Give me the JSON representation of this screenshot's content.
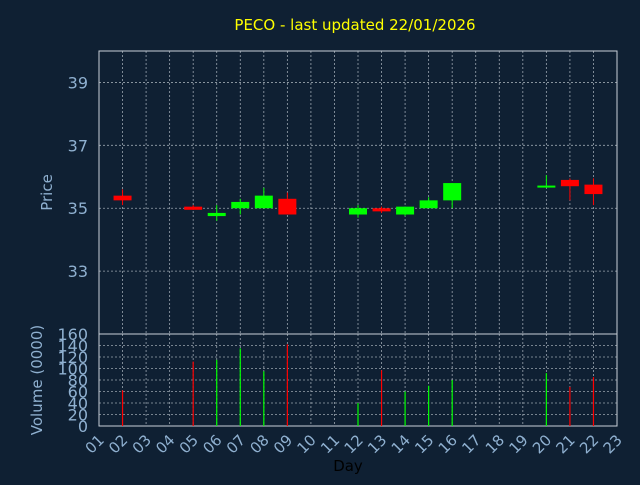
{
  "title": "PECO - last updated 22/01/2026",
  "colors": {
    "background": "#0f2033",
    "title": "#ffff00",
    "axis_text": "#8fb0d0",
    "xlabel": "#000000",
    "grid": "#c8d0d8",
    "frame": "#c8d0d8",
    "up": "#00ff00",
    "down": "#ff0000"
  },
  "chart_data": [
    {
      "type": "candlestick",
      "title": "PECO - last updated 22/01/2026",
      "ylabel": "Price",
      "xlabel": "",
      "ylim": [
        31.0,
        40.0
      ],
      "yticks": [
        33,
        35,
        37,
        39
      ],
      "grid": true,
      "candles": [
        {
          "day": "02",
          "open": 35.4,
          "high": 35.6,
          "low": 35.1,
          "close": 35.25
        },
        {
          "day": "05",
          "open": 35.05,
          "high": 35.1,
          "low": 34.95,
          "close": 34.95
        },
        {
          "day": "06",
          "open": 34.75,
          "high": 35.1,
          "low": 34.6,
          "close": 34.85
        },
        {
          "day": "07",
          "open": 35.0,
          "high": 35.3,
          "low": 34.8,
          "close": 35.2
        },
        {
          "day": "08",
          "open": 35.0,
          "high": 35.65,
          "low": 35.0,
          "close": 35.4
        },
        {
          "day": "09",
          "open": 35.3,
          "high": 35.5,
          "low": 34.8,
          "close": 34.8
        },
        {
          "day": "12",
          "open": 34.8,
          "high": 35.1,
          "low": 34.7,
          "close": 35.0
        },
        {
          "day": "13",
          "open": 35.0,
          "high": 35.05,
          "low": 34.85,
          "close": 34.9
        },
        {
          "day": "14",
          "open": 34.8,
          "high": 35.05,
          "low": 34.75,
          "close": 35.05
        },
        {
          "day": "15",
          "open": 35.0,
          "high": 35.35,
          "low": 35.0,
          "close": 35.25
        },
        {
          "day": "16",
          "open": 35.25,
          "high": 35.8,
          "low": 35.0,
          "close": 35.8
        },
        {
          "day": "20",
          "open": 35.7,
          "high": 36.05,
          "low": 35.65,
          "close": 35.72
        },
        {
          "day": "21",
          "open": 35.9,
          "high": 35.95,
          "low": 35.25,
          "close": 35.7
        },
        {
          "day": "22",
          "open": 35.75,
          "high": 35.95,
          "low": 35.1,
          "close": 35.45
        }
      ]
    },
    {
      "type": "bar",
      "ylabel": "Volume (0000)",
      "xlabel": "Day",
      "ylim": [
        0,
        160
      ],
      "yticks": [
        0,
        20,
        40,
        60,
        80,
        100,
        120,
        140,
        160
      ],
      "grid": true,
      "categories": [
        "01",
        "02",
        "03",
        "04",
        "05",
        "06",
        "07",
        "08",
        "09",
        "10",
        "11",
        "12",
        "13",
        "14",
        "15",
        "16",
        "17",
        "18",
        "19",
        "20",
        "21",
        "22",
        "23"
      ],
      "bars": [
        {
          "day": "02",
          "value": 62,
          "direction": "down"
        },
        {
          "day": "05",
          "value": 112,
          "direction": "down"
        },
        {
          "day": "06",
          "value": 115,
          "direction": "up"
        },
        {
          "day": "07",
          "value": 135,
          "direction": "up"
        },
        {
          "day": "08",
          "value": 95,
          "direction": "up"
        },
        {
          "day": "09",
          "value": 142,
          "direction": "down"
        },
        {
          "day": "12",
          "value": 40,
          "direction": "up"
        },
        {
          "day": "13",
          "value": 97,
          "direction": "down"
        },
        {
          "day": "14",
          "value": 60,
          "direction": "up"
        },
        {
          "day": "15",
          "value": 70,
          "direction": "up"
        },
        {
          "day": "16",
          "value": 80,
          "direction": "up"
        },
        {
          "day": "20",
          "value": 92,
          "direction": "up"
        },
        {
          "day": "21",
          "value": 68,
          "direction": "down"
        },
        {
          "day": "22",
          "value": 85,
          "direction": "down"
        }
      ]
    }
  ]
}
